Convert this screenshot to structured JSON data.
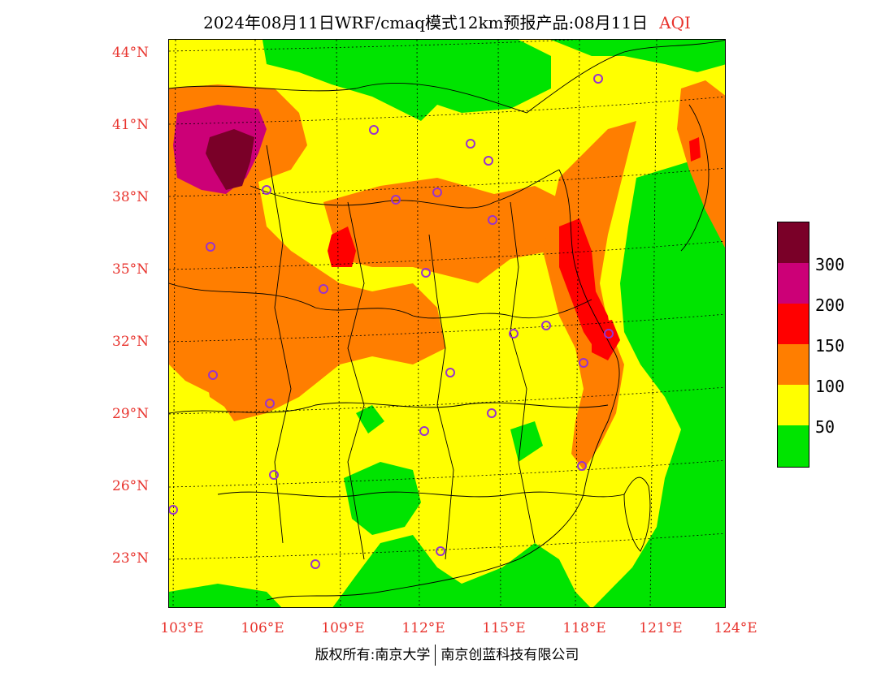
{
  "title": {
    "main": "2024年08月11日WRF/cmaq模式12km预报产品:08月11日",
    "variable": "AQI"
  },
  "axes": {
    "lat_labels": [
      "44°N",
      "41°N",
      "38°N",
      "35°N",
      "32°N",
      "29°N",
      "26°N",
      "23°N"
    ],
    "lon_labels": [
      "103°E",
      "106°E",
      "109°E",
      "112°E",
      "115°E",
      "118°E",
      "121°E",
      "124°E"
    ]
  },
  "legend": {
    "colors": [
      "#7a0028",
      "#cc0077",
      "#ff0000",
      "#ff7e00",
      "#ffff00",
      "#00e400"
    ],
    "labels": [
      "300",
      "200",
      "150",
      "100",
      "50"
    ]
  },
  "footer": {
    "left": "版权所有:南京大学",
    "right": "南京创蓝科技有限公司"
  },
  "map_colors": {
    "good": "#00e400",
    "moderate": "#ffff00",
    "sensitive": "#ff7e00",
    "unhealthy": "#ff0000",
    "very_unhealthy": "#cc0077",
    "hazardous": "#7a0028",
    "city_marker": "#9933cc"
  }
}
